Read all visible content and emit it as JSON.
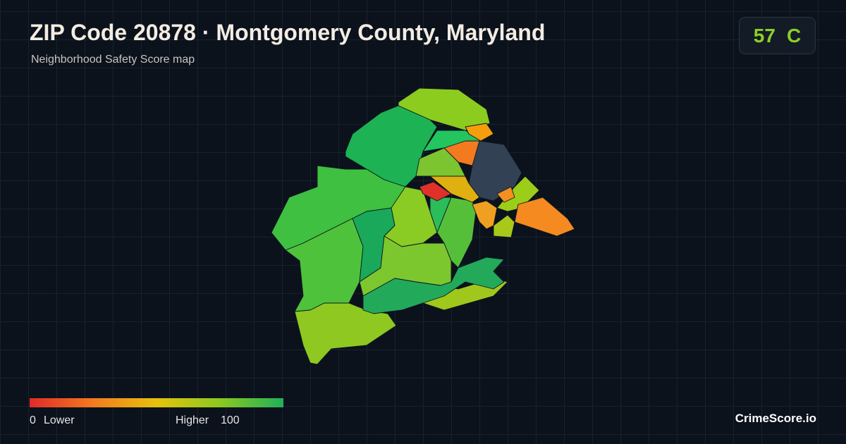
{
  "header": {
    "title": "ZIP Code 20878 · Montgomery County, Maryland",
    "subtitle": "Neighborhood Safety Score map"
  },
  "score": {
    "value": 57,
    "grade": "C"
  },
  "legend": {
    "min": 0,
    "min_label": "Lower",
    "max_label": "Higher",
    "max": 100
  },
  "brand": "CrimeScore.io"
}
